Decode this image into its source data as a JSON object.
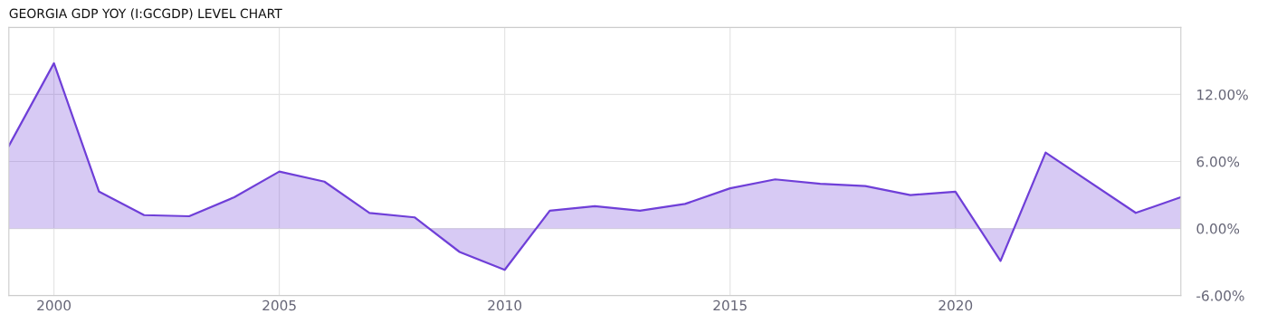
{
  "chart_data": {
    "type": "area",
    "title": "GEORGIA GDP YOY (I:GCGDP) LEVEL CHART",
    "series": [
      {
        "color": "#6f3fd8",
        "x": [
          1999,
          2000,
          2001,
          2002,
          2003,
          2004,
          2005,
          2006,
          2007,
          2008,
          2009,
          2010,
          2011,
          2012,
          2013,
          2014,
          2015,
          2016,
          2017,
          2018,
          2019,
          2020,
          2021,
          2022,
          2024,
          2025
        ],
        "values": [
          7.4,
          14.8,
          3.3,
          1.2,
          1.1,
          2.8,
          5.1,
          4.2,
          1.4,
          1.0,
          -2.1,
          -3.7,
          1.6,
          2.0,
          1.6,
          2.2,
          3.6,
          4.4,
          4.0,
          3.8,
          3.0,
          3.3,
          -2.9,
          6.8,
          1.4,
          2.8
        ]
      }
    ],
    "xlim": [
      1999,
      2025
    ],
    "xticks": [
      2000,
      2005,
      2010,
      2015,
      2020
    ],
    "ylim": [
      -6,
      18
    ],
    "yticks": [
      {
        "value": -6,
        "label": "-6.00%"
      },
      {
        "value": 0,
        "label": "0.00%"
      },
      {
        "value": 6,
        "label": "6.00%"
      },
      {
        "value": 12,
        "label": "12.00%"
      }
    ],
    "grid": true
  }
}
